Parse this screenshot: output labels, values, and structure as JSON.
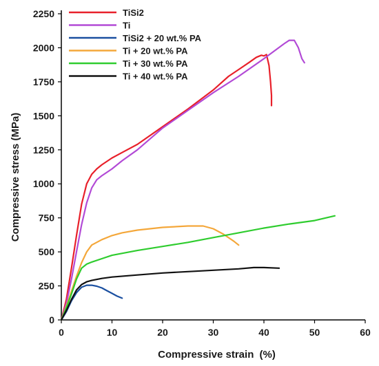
{
  "chart_data": {
    "type": "line",
    "xlabel": "Compressive strain",
    "xlabel_unit": "(%)",
    "ylabel": "Compressive stress  (MPa)",
    "xlim": [
      0,
      60
    ],
    "ylim": [
      0,
      2250
    ],
    "xticks": [
      0,
      10,
      20,
      30,
      40,
      50,
      60
    ],
    "yticks": [
      0,
      250,
      500,
      750,
      1000,
      1250,
      1500,
      1750,
      2000,
      2250
    ],
    "grid": false,
    "legend_position": "top-left",
    "series": [
      {
        "name": "TiSi2",
        "color": "#e8202a",
        "points": [
          [
            0,
            0
          ],
          [
            1,
            150
          ],
          [
            2,
            380
          ],
          [
            3,
            620
          ],
          [
            4,
            850
          ],
          [
            5,
            1000
          ],
          [
            6,
            1070
          ],
          [
            7,
            1110
          ],
          [
            8,
            1140
          ],
          [
            10,
            1190
          ],
          [
            12,
            1230
          ],
          [
            15,
            1290
          ],
          [
            20,
            1420
          ],
          [
            25,
            1550
          ],
          [
            30,
            1690
          ],
          [
            33,
            1790
          ],
          [
            35,
            1840
          ],
          [
            37,
            1890
          ],
          [
            38.5,
            1930
          ],
          [
            39.5,
            1945
          ],
          [
            40,
            1940
          ],
          [
            40.5,
            1950
          ],
          [
            41,
            1870
          ],
          [
            41.3,
            1750
          ],
          [
            41.5,
            1650
          ],
          [
            41.5,
            1575
          ]
        ]
      },
      {
        "name": "Ti",
        "color": "#b24ad6",
        "points": [
          [
            0,
            0
          ],
          [
            1,
            120
          ],
          [
            2,
            300
          ],
          [
            3,
            500
          ],
          [
            4,
            700
          ],
          [
            5,
            860
          ],
          [
            6,
            970
          ],
          [
            7,
            1030
          ],
          [
            8,
            1060
          ],
          [
            10,
            1110
          ],
          [
            12,
            1170
          ],
          [
            15,
            1250
          ],
          [
            20,
            1410
          ],
          [
            25,
            1540
          ],
          [
            30,
            1670
          ],
          [
            35,
            1790
          ],
          [
            40,
            1920
          ],
          [
            42,
            1975
          ],
          [
            44,
            2030
          ],
          [
            45,
            2055
          ],
          [
            46,
            2055
          ],
          [
            46.8,
            2000
          ],
          [
            47.5,
            1920
          ],
          [
            48,
            1890
          ]
        ]
      },
      {
        "name": "TiSi2 + 20 wt.% PA",
        "color": "#1a4fa0",
        "points": [
          [
            0,
            0
          ],
          [
            1,
            60
          ],
          [
            2,
            140
          ],
          [
            3,
            200
          ],
          [
            4,
            240
          ],
          [
            5,
            255
          ],
          [
            6,
            255
          ],
          [
            7,
            248
          ],
          [
            8,
            235
          ],
          [
            9,
            215
          ],
          [
            10,
            195
          ],
          [
            11,
            175
          ],
          [
            12,
            160
          ]
        ]
      },
      {
        "name": "Ti + 20 wt.% PA",
        "color": "#f4a73a",
        "points": [
          [
            0,
            0
          ],
          [
            1,
            100
          ],
          [
            2,
            210
          ],
          [
            3,
            320
          ],
          [
            4,
            420
          ],
          [
            5,
            500
          ],
          [
            6,
            550
          ],
          [
            8,
            590
          ],
          [
            10,
            620
          ],
          [
            12,
            640
          ],
          [
            15,
            660
          ],
          [
            20,
            680
          ],
          [
            25,
            690
          ],
          [
            28,
            690
          ],
          [
            30,
            670
          ],
          [
            32,
            630
          ],
          [
            34,
            580
          ],
          [
            35,
            550
          ]
        ]
      },
      {
        "name": "Ti + 30 wt.% PA",
        "color": "#2ecc2e",
        "points": [
          [
            0,
            0
          ],
          [
            1,
            90
          ],
          [
            2,
            190
          ],
          [
            3,
            300
          ],
          [
            4,
            380
          ],
          [
            5,
            410
          ],
          [
            6,
            425
          ],
          [
            8,
            450
          ],
          [
            10,
            475
          ],
          [
            15,
            510
          ],
          [
            20,
            540
          ],
          [
            25,
            570
          ],
          [
            30,
            605
          ],
          [
            35,
            640
          ],
          [
            40,
            675
          ],
          [
            45,
            705
          ],
          [
            50,
            730
          ],
          [
            54,
            765
          ]
        ]
      },
      {
        "name": "Ti + 40 wt.% PA",
        "color": "#111111",
        "points": [
          [
            0,
            0
          ],
          [
            1,
            70
          ],
          [
            2,
            150
          ],
          [
            3,
            220
          ],
          [
            4,
            260
          ],
          [
            5,
            280
          ],
          [
            6,
            290
          ],
          [
            8,
            305
          ],
          [
            10,
            315
          ],
          [
            15,
            330
          ],
          [
            20,
            345
          ],
          [
            25,
            355
          ],
          [
            30,
            365
          ],
          [
            35,
            375
          ],
          [
            38,
            385
          ],
          [
            40,
            385
          ],
          [
            43,
            380
          ]
        ]
      }
    ]
  }
}
